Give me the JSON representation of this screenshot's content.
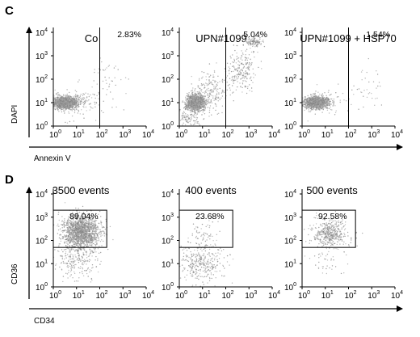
{
  "chart_data": [
    {
      "panel": "C",
      "type": "scatter",
      "xlabel": "Annexin V",
      "ylabel": "DAPI",
      "scale": "log",
      "xlim": [
        1,
        10000
      ],
      "ylim": [
        1,
        10000
      ],
      "x_ticks": [
        "10",
        "10",
        "10",
        "10",
        "10"
      ],
      "x_tick_exps": [
        "0",
        "1",
        "2",
        "3",
        "4"
      ],
      "y_ticks": [
        "10",
        "10",
        "10",
        "10",
        "10"
      ],
      "y_tick_exps": [
        "0",
        "1",
        "2",
        "3",
        "4"
      ],
      "gate": {
        "type": "vertical",
        "x": 100
      },
      "plots": [
        {
          "title": "Co",
          "gate_percent": "2.83%",
          "populations": [
            {
              "cx": 0.5,
              "cy": 1.0,
              "sx": 0.28,
              "sy": 0.13,
              "n": 1500
            },
            {
              "cx": 1.0,
              "cy": 1.0,
              "sx": 0.6,
              "sy": 0.35,
              "n": 120
            },
            {
              "cx": 2.4,
              "cy": 1.9,
              "sx": 0.45,
              "sy": 0.5,
              "n": 45
            }
          ]
        },
        {
          "title": "UPN#1099",
          "gate_percent": "5.04%",
          "populations": [
            {
              "cx": 0.7,
              "cy": 1.0,
              "sx": 0.2,
              "sy": 0.18,
              "n": 1100
            },
            {
              "cx": 1.4,
              "cy": 1.5,
              "sx": 0.35,
              "sy": 0.45,
              "n": 200
            },
            {
              "cx": 2.7,
              "cy": 2.4,
              "sx": 0.3,
              "sy": 0.45,
              "n": 220
            },
            {
              "cx": 3.2,
              "cy": 3.6,
              "sx": 0.2,
              "sy": 0.1,
              "n": 110
            },
            {
              "cx": 0.4,
              "cy": 0.3,
              "sx": 0.25,
              "sy": 0.2,
              "n": 90
            }
          ]
        },
        {
          "title": "UPN#1099 + HSP70",
          "gate_percent": "1.54%",
          "populations": [
            {
              "cx": 0.6,
              "cy": 1.0,
              "sx": 0.25,
              "sy": 0.12,
              "n": 1300
            },
            {
              "cx": 1.0,
              "cy": 1.0,
              "sx": 0.55,
              "sy": 0.3,
              "n": 90
            },
            {
              "cx": 2.8,
              "cy": 1.7,
              "sx": 0.4,
              "sy": 0.4,
              "n": 35
            }
          ]
        }
      ]
    },
    {
      "panel": "D",
      "type": "scatter",
      "xlabel": "CD34",
      "ylabel": "CD36",
      "scale": "log",
      "xlim": [
        1,
        10000
      ],
      "ylim": [
        1,
        10000
      ],
      "x_ticks": [
        "10",
        "10",
        "10",
        "10",
        "10"
      ],
      "x_tick_exps": [
        "0",
        "1",
        "2",
        "3",
        "4"
      ],
      "y_ticks": [
        "10",
        "10",
        "10",
        "10",
        "10"
      ],
      "y_tick_exps": [
        "0",
        "1",
        "2",
        "3",
        "4"
      ],
      "gate": {
        "type": "box",
        "x": [
          1,
          200
        ],
        "y": [
          50,
          2000
        ]
      },
      "plots": [
        {
          "title": "3500 events",
          "gate_percent": "89.04%",
          "populations": [
            {
              "cx": 1.2,
              "cy": 2.35,
              "sx": 0.4,
              "sy": 0.35,
              "n": 1600
            },
            {
              "cx": 1.0,
              "cy": 1.2,
              "sx": 0.45,
              "sy": 0.45,
              "n": 250
            }
          ]
        },
        {
          "title": "400 events",
          "gate_percent": "23.68%",
          "populations": [
            {
              "cx": 0.9,
              "cy": 1.0,
              "sx": 0.5,
              "sy": 0.4,
              "n": 330
            },
            {
              "cx": 1.0,
              "cy": 2.2,
              "sx": 0.4,
              "sy": 0.35,
              "n": 70
            }
          ]
        },
        {
          "title": "500 events",
          "gate_percent": "92.58%",
          "populations": [
            {
              "cx": 1.2,
              "cy": 2.3,
              "sx": 0.4,
              "sy": 0.3,
              "n": 440
            },
            {
              "cx": 1.0,
              "cy": 1.2,
              "sx": 0.4,
              "sy": 0.4,
              "n": 40
            }
          ]
        }
      ]
    }
  ]
}
